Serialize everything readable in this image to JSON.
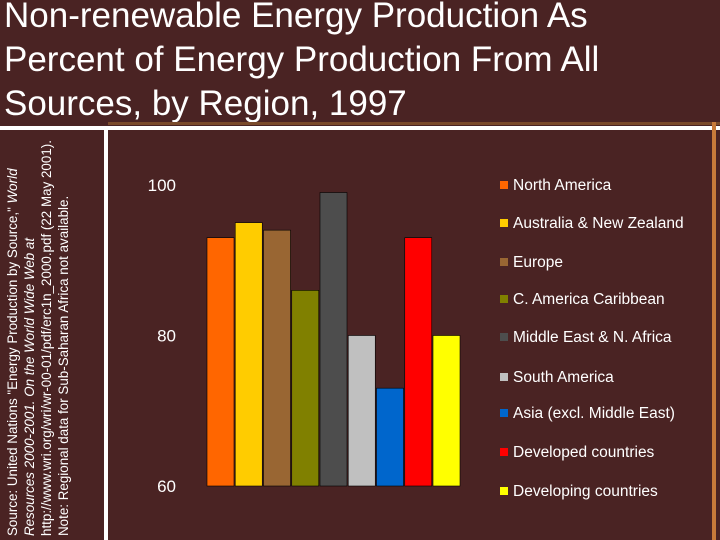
{
  "title": "Non-renewable Energy Production As Percent of Energy Production From All Sources, by Region, 1997",
  "source": {
    "prefix": "Source: United Nations \"Energy Production by Source,\" ",
    "italic": "World Resources 2000-2001. On the World Wide Web at",
    "suffix": " http://www.wri.org/wri/wr-00-01/pdf/erc1n_2000.pdf (22 May 2001). Note: Regional data for Sub-Saharan Africa not available."
  },
  "chart_data": {
    "type": "bar",
    "title": "Non-renewable Energy Production As Percent of Energy Production From All Sources, by Region, 1997",
    "xlabel": "",
    "ylabel": "",
    "ylim": [
      60,
      100
    ],
    "yticks": [
      "100",
      "80",
      "60"
    ],
    "grid": false,
    "legend_position": "right",
    "categories": [
      "North America",
      "Australia & New Zealand",
      "Europe",
      "C. America Caribbean",
      "Middle East & N. Africa",
      "South America",
      "Asia (excl. Middle East)",
      "Developed countries",
      "Developing countries"
    ],
    "values": [
      93,
      95,
      94,
      86,
      99,
      80,
      73,
      93,
      80
    ],
    "colors": [
      "#ff6600",
      "#ffcc00",
      "#996633",
      "#808000",
      "#4d4d4d",
      "#c0c0c0",
      "#0066cc",
      "#ff0000",
      "#ffff00"
    ]
  }
}
